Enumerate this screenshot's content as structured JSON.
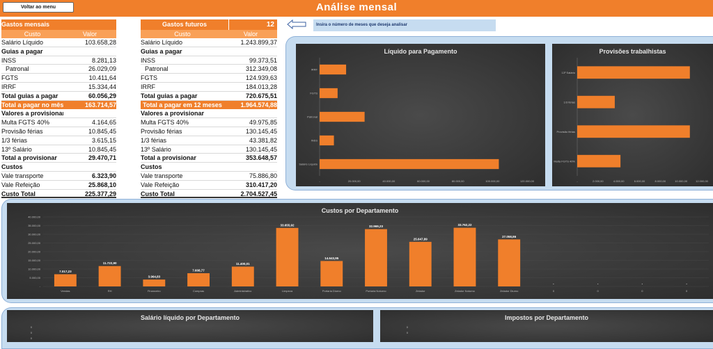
{
  "topbar": {
    "back_button": "Voltar ao menu",
    "title": "Análise mensal"
  },
  "monthly": {
    "header": "Gastos mensais",
    "col_custo": "Custo",
    "col_valor": "Valor",
    "rows": [
      {
        "label": "Salário Líquido",
        "value": "103.658,28",
        "type": ""
      },
      {
        "label": "Guias a pagar",
        "value": "",
        "type": "sec"
      },
      {
        "label": "INSS",
        "value": "8.281,13",
        "type": ""
      },
      {
        "label": "Patronal",
        "value": "26.029,09",
        "type": "indent"
      },
      {
        "label": "FGTS",
        "value": "10.411,64",
        "type": ""
      },
      {
        "label": "IRRF",
        "value": "15.334,44",
        "type": ""
      },
      {
        "label": "Total guias a pagar",
        "value": "60.056,29",
        "type": "bold"
      },
      {
        "label": "Total a pagar no mês",
        "value": "163.714,57",
        "type": "hl"
      },
      {
        "label": "Valores a provisionar",
        "value": "",
        "type": "sec"
      },
      {
        "label": "Multa FGTS 40%",
        "value": "4.164,65",
        "type": ""
      },
      {
        "label": "Provisão férias",
        "value": "10.845,45",
        "type": ""
      },
      {
        "label": "1/3 férias",
        "value": "3.615,15",
        "type": ""
      },
      {
        "label": "13º Salário",
        "value": "10.845,45",
        "type": ""
      },
      {
        "label": "Total a provisionar",
        "value": "29.470,71",
        "type": "bold"
      },
      {
        "label": "Custos",
        "value": "",
        "type": "sec"
      },
      {
        "label": "Vale transporte",
        "value": "6.323,90",
        "type": "valbold"
      },
      {
        "label": "Vale Refeição",
        "value": "25.868,10",
        "type": "valbold"
      },
      {
        "label": "Custo Total",
        "value": "225.377,29",
        "type": "total"
      }
    ]
  },
  "future": {
    "header": "Gastos futuros",
    "months": "12",
    "col_custo": "Custo",
    "col_valor": "Valor",
    "rows": [
      {
        "label": "Salário Líquido",
        "value": "1.243.899,37",
        "type": ""
      },
      {
        "label": "Guias a pagar",
        "value": "",
        "type": "sec"
      },
      {
        "label": "INSS",
        "value": "99.373,51",
        "type": ""
      },
      {
        "label": "Patronal",
        "value": "312.349,08",
        "type": "indent"
      },
      {
        "label": "FGTS",
        "value": "124.939,63",
        "type": ""
      },
      {
        "label": "IRRF",
        "value": "184.013,28",
        "type": ""
      },
      {
        "label": "Total guias a pagar",
        "value": "720.675,51",
        "type": "bold"
      },
      {
        "label": "Total a pagar em 12 meses",
        "value": "1.964.574,88",
        "type": "hl"
      },
      {
        "label": "Valores a provisionar",
        "value": "",
        "type": "sec"
      },
      {
        "label": "Multa FGTS 40%",
        "value": "49.975,85",
        "type": ""
      },
      {
        "label": "Provisão férias",
        "value": "130.145,45",
        "type": ""
      },
      {
        "label": "1/3 férias",
        "value": "43.381,82",
        "type": ""
      },
      {
        "label": "13º Salário",
        "value": "130.145,45",
        "type": ""
      },
      {
        "label": "Total a provisionar",
        "value": "353.648,57",
        "type": "bold"
      },
      {
        "label": "Custos",
        "value": "",
        "type": "sec"
      },
      {
        "label": "Vale transporte",
        "value": "75.886,80",
        "type": ""
      },
      {
        "label": "Vale Refeição",
        "value": "310.417,20",
        "type": "valbold"
      },
      {
        "label": "Custo Total",
        "value": "2.704.527,45",
        "type": "total"
      }
    ]
  },
  "hint": "Insira o número de meses que deseja analisar",
  "colors": {
    "orange": "#f07f2b",
    "panel": "#c6dcf0"
  },
  "chart_data": [
    {
      "type": "bar",
      "orientation": "horizontal",
      "title": "Líquido para Pagamento",
      "categories": [
        "IRRF",
        "FGTS",
        "Patronal",
        "INSS",
        "Salário Líquido"
      ],
      "values": [
        15334.44,
        10411.64,
        26029.09,
        8281.13,
        103658.28
      ],
      "xlim": [
        0,
        120000
      ],
      "ticks": [
        "-",
        "20.000,00",
        "40.000,00",
        "60.000,00",
        "80.000,00",
        "100.000,00",
        "120.000,00"
      ]
    },
    {
      "type": "bar",
      "orientation": "horizontal",
      "title": "Provisões trabalhistas",
      "categories": [
        "13º Salário",
        "1/3 férias",
        "Provisão férias",
        "Multa FGTS 40%"
      ],
      "values": [
        10845.45,
        3615.15,
        10845.45,
        4164.65
      ],
      "xlim": [
        0,
        12000
      ],
      "ticks": [
        "-",
        "2.000,00",
        "4.000,00",
        "6.000,00",
        "8.000,00",
        "10.000,00",
        "12.000,00"
      ]
    },
    {
      "type": "bar",
      "title": "Custos por Departamento",
      "categories": [
        "Vendas",
        "RH",
        "Financeiro",
        "Compras",
        "Administrativo",
        "Limpeza",
        "Portaria Diurno",
        "Portaria Noturno",
        "Zelador",
        "Zelador Noturno",
        "Zelador Diurno",
        "0",
        "0",
        "0",
        "0"
      ],
      "values": [
        7017.23,
        11722.9,
        3964.83,
        7608.77,
        11400.01,
        33655.92,
        14643.95,
        32969.23,
        25647.89,
        33762.22,
        27058.86,
        0,
        0,
        0,
        0
      ],
      "labels": [
        "7.017,23",
        "11.722,90",
        "3.964,83",
        "7.608,77",
        "11.400,01",
        "33.655,92",
        "14.643,95",
        "32.969,23",
        "25.647,89",
        "33.762,22",
        "27.058,86",
        "-",
        "-",
        "-",
        "-"
      ],
      "ylim": [
        0,
        40000
      ],
      "ticks": [
        "-",
        "5.000,00",
        "10.000,00",
        "15.000,00",
        "20.000,00",
        "25.000,00",
        "30.000,00",
        "35.000,00",
        "40.000,00"
      ]
    },
    {
      "type": "bar",
      "title": "Salário líquido por Departamento",
      "ticks": [
        "0",
        "0",
        "0"
      ]
    },
    {
      "type": "bar",
      "title": "Impostos por Departamento",
      "ticks": [
        "0",
        "0"
      ]
    }
  ]
}
